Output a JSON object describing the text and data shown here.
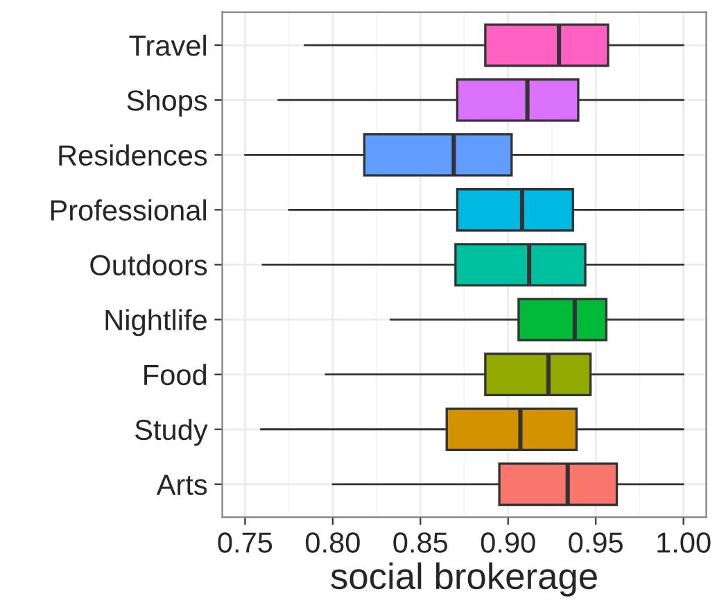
{
  "chart_data": {
    "type": "box",
    "orientation": "horizontal",
    "xlabel": "social brokerage",
    "categories": [
      "Travel",
      "Shops",
      "Residences",
      "Professional",
      "Outdoors",
      "Nightlife",
      "Food",
      "Study",
      "Arts"
    ],
    "colors": [
      "#ff61c3",
      "#db72fb",
      "#619cff",
      "#00b9e3",
      "#00c19f",
      "#00ba38",
      "#93aa00",
      "#d39200",
      "#f8766d"
    ],
    "boxes": [
      {
        "low": 0.784,
        "q1": 0.887,
        "median": 0.929,
        "q3": 0.957,
        "high": 1.0
      },
      {
        "low": 0.769,
        "q1": 0.871,
        "median": 0.911,
        "q3": 0.94,
        "high": 1.0
      },
      {
        "low": 0.75,
        "q1": 0.818,
        "median": 0.869,
        "q3": 0.902,
        "high": 1.0
      },
      {
        "low": 0.775,
        "q1": 0.871,
        "median": 0.908,
        "q3": 0.937,
        "high": 1.0
      },
      {
        "low": 0.76,
        "q1": 0.87,
        "median": 0.912,
        "q3": 0.944,
        "high": 1.0
      },
      {
        "low": 0.833,
        "q1": 0.906,
        "median": 0.938,
        "q3": 0.956,
        "high": 1.0
      },
      {
        "low": 0.796,
        "q1": 0.887,
        "median": 0.923,
        "q3": 0.947,
        "high": 1.0
      },
      {
        "low": 0.759,
        "q1": 0.865,
        "median": 0.907,
        "q3": 0.939,
        "high": 1.0
      },
      {
        "low": 0.8,
        "q1": 0.895,
        "median": 0.934,
        "q3": 0.962,
        "high": 1.0
      }
    ],
    "xlim": [
      0.737,
      1.013
    ],
    "xticks": [
      {
        "value": 0.75,
        "label": "0.75"
      },
      {
        "value": 0.8,
        "label": "0.80"
      },
      {
        "value": 0.85,
        "label": "0.85"
      },
      {
        "value": 0.9,
        "label": "0.90"
      },
      {
        "value": 0.95,
        "label": "0.95"
      },
      {
        "value": 1.0,
        "label": "1.00"
      }
    ],
    "grid": true
  }
}
